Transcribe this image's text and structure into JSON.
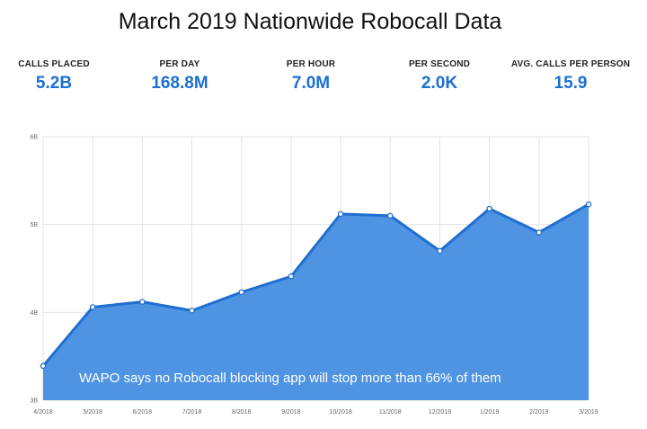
{
  "title": "March 2019 Nationwide Robocall Data",
  "stats": [
    {
      "label": "CALLS PLACED",
      "value": "5.2B"
    },
    {
      "label": "PER DAY",
      "value": "168.8M"
    },
    {
      "label": "PER HOUR",
      "value": "7.0M"
    },
    {
      "label": "PER SECOND",
      "value": "2.0K"
    },
    {
      "label": "AVG. CALLS PER PERSON",
      "value": "15.9"
    }
  ],
  "colors": {
    "stat_value": "#1a6fd1",
    "area_fill": "#4f93e3",
    "line": "#1f6fcf",
    "grid": "#e3e3e3"
  },
  "chart_data": {
    "type": "area",
    "title": "",
    "xlabel": "",
    "ylabel": "",
    "categories": [
      "4/2018",
      "5/2018",
      "6/2018",
      "7/2018",
      "8/2018",
      "9/2018",
      "10/2018",
      "11/2018",
      "12/2018",
      "1/2019",
      "2/2019",
      "3/2019"
    ],
    "values": [
      3.39,
      4.06,
      4.12,
      4.02,
      4.23,
      4.41,
      5.12,
      5.1,
      4.7,
      5.18,
      4.91,
      5.23
    ],
    "yticks": [
      "3B",
      "4B",
      "5B",
      "6B"
    ],
    "ylim": [
      3,
      6
    ],
    "grid": true,
    "annotation": "WAPO says no Robocall blocking app will stop more than 66% of them"
  }
}
